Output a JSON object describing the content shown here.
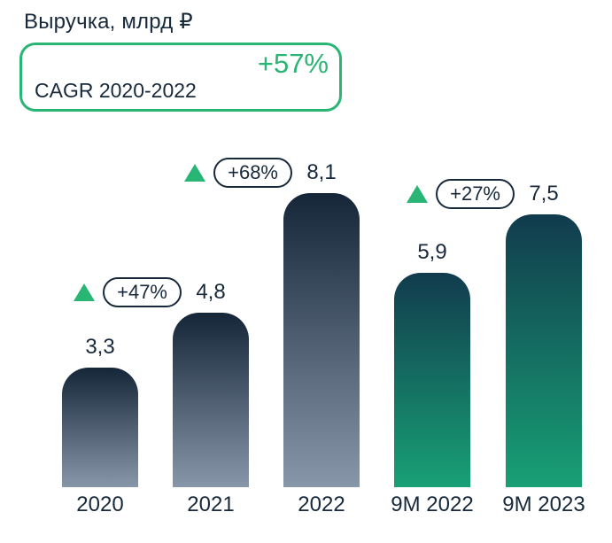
{
  "header": {
    "title": "Выручка, млрд ₽"
  },
  "cagr_box": {
    "value": "+57%",
    "label": "CAGR 2020-2022"
  },
  "chart_data": {
    "type": "bar",
    "title": "Выручка, млрд ₽",
    "categories": [
      "2020",
      "2021",
      "2022",
      "9M 2022",
      "9M 2023"
    ],
    "values": [
      3.3,
      4.8,
      8.1,
      5.9,
      7.5
    ],
    "value_labels": [
      "3,3",
      "4,8",
      "8,1",
      "5,9",
      "7,5"
    ],
    "growth_vs_prior": [
      null,
      "+47%",
      "+68%",
      null,
      "+27%"
    ],
    "bar_groups": [
      "annual",
      "annual",
      "annual",
      "nine-month",
      "nine-month"
    ],
    "ylim": [
      0,
      8.5
    ],
    "grid": false,
    "legend": false,
    "annotations": "green triangle + outlined pill badge with YoY growth, value label above each bar"
  },
  "colors": {
    "text_dark": "#17293b",
    "accent_green": "#29b573",
    "annual_bar_top": "#152638",
    "annual_bar_bottom": "#8896a9",
    "nine_month_bar_top": "#113b4d",
    "nine_month_bar_bottom": "#18a075",
    "badge_bg": "#ffffff"
  }
}
